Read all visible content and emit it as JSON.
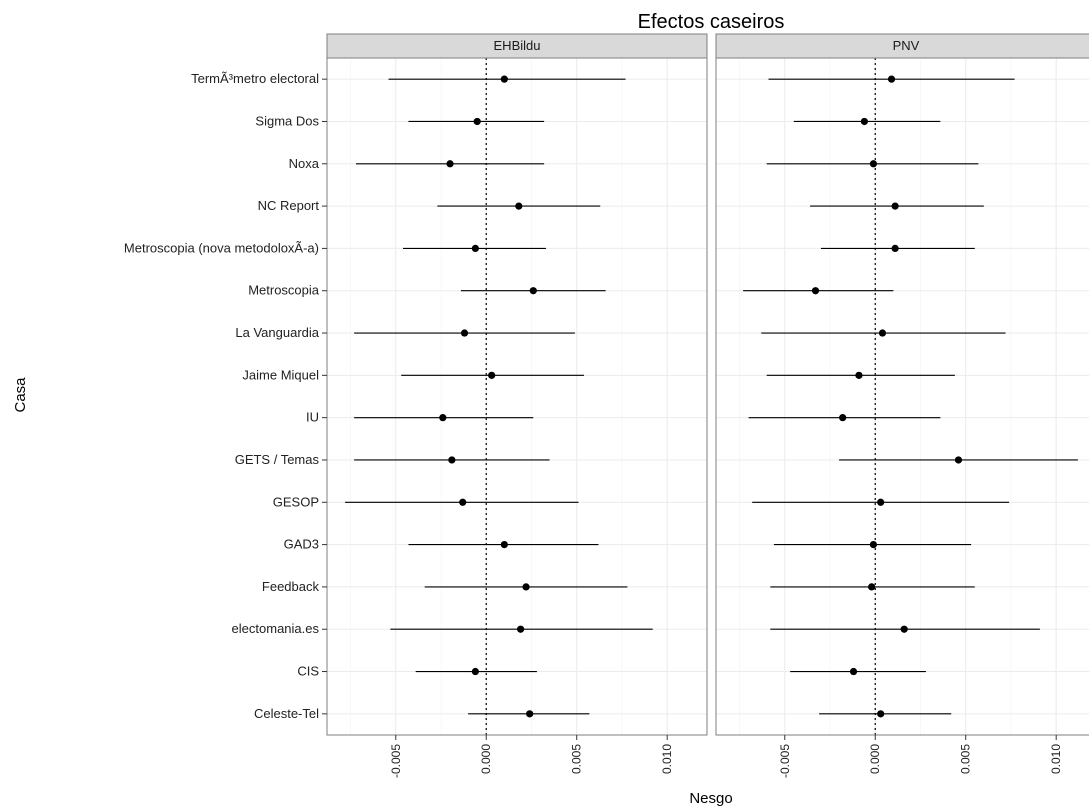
{
  "chart_data": {
    "type": "scatter",
    "title": "Efectos caseiros",
    "xlabel": "Nesgo",
    "ylabel": "Casa",
    "x_ticks": [
      -0.005,
      0.0,
      0.005,
      0.01
    ],
    "x_tick_labels": [
      "-0.005",
      "0.000",
      "0.005",
      "0.010"
    ],
    "xlim": [
      -0.0088,
      0.0122
    ],
    "reference_line": 0,
    "grid": true,
    "categories": [
      "TermÃ³metro electoral",
      "Sigma Dos",
      "Noxa",
      "NC Report",
      "Metroscopia (nova metodoloxÃ-a)",
      "Metroscopia",
      "La Vanguardia",
      "Jaime Miquel",
      "IU",
      "GETS / Temas",
      "GESOP",
      "GAD3",
      "Feedback",
      "electomania.es",
      "CIS",
      "Celeste-Tel"
    ],
    "panels": [
      {
        "name": "EHBildu",
        "estimate": [
          0.001,
          -0.0005,
          -0.002,
          0.0018,
          -0.0006,
          0.0026,
          -0.0012,
          0.0003,
          -0.0024,
          -0.0019,
          -0.0013,
          0.001,
          0.0022,
          0.0019,
          -0.0006,
          0.0024
        ],
        "low": [
          -0.0054,
          -0.0043,
          -0.0072,
          -0.0027,
          -0.0046,
          -0.0014,
          -0.0073,
          -0.0047,
          -0.0073,
          -0.0073,
          -0.0078,
          -0.0043,
          -0.0034,
          -0.0053,
          -0.0039,
          -0.001
        ],
        "high": [
          0.0077,
          0.0032,
          0.0032,
          0.0063,
          0.0033,
          0.0066,
          0.0049,
          0.0054,
          0.0026,
          0.0035,
          0.0051,
          0.0062,
          0.0078,
          0.0092,
          0.0028,
          0.0057
        ]
      },
      {
        "name": "PNV",
        "estimate": [
          0.0009,
          -0.0006,
          -0.0001,
          0.0011,
          0.0011,
          -0.0033,
          0.0004,
          -0.0009,
          -0.0018,
          0.0046,
          0.0003,
          -0.0001,
          -0.0002,
          0.0016,
          -0.0012,
          0.0003
        ],
        "low": [
          -0.0059,
          -0.0045,
          -0.006,
          -0.0036,
          -0.003,
          -0.0073,
          -0.0063,
          -0.006,
          -0.007,
          -0.002,
          -0.0068,
          -0.0056,
          -0.0058,
          -0.0058,
          -0.0047,
          -0.0031
        ],
        "high": [
          0.0077,
          0.0036,
          0.0057,
          0.006,
          0.0055,
          0.001,
          0.0072,
          0.0044,
          0.0036,
          0.0112,
          0.0074,
          0.0053,
          0.0055,
          0.0091,
          0.0028,
          0.0042
        ]
      }
    ]
  }
}
